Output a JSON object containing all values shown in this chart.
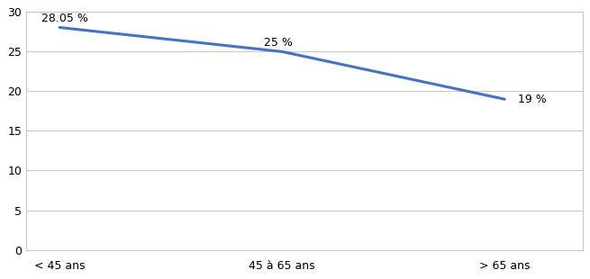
{
  "categories": [
    "< 45 ans",
    "45 à 65 ans",
    "> 65 ans"
  ],
  "values": [
    28.05,
    25,
    19
  ],
  "labels": [
    "28.05 %",
    "25 %",
    "19 %"
  ],
  "line_color": "#4472C4",
  "line_width": 2.2,
  "ylim": [
    0,
    30
  ],
  "yticks": [
    0,
    5,
    10,
    15,
    20,
    25,
    30
  ],
  "background_color": "#ffffff",
  "grid_color": "#c8c8c8",
  "label_fontsize": 9,
  "tick_fontsize": 9,
  "border_color": "#c8c8c8"
}
